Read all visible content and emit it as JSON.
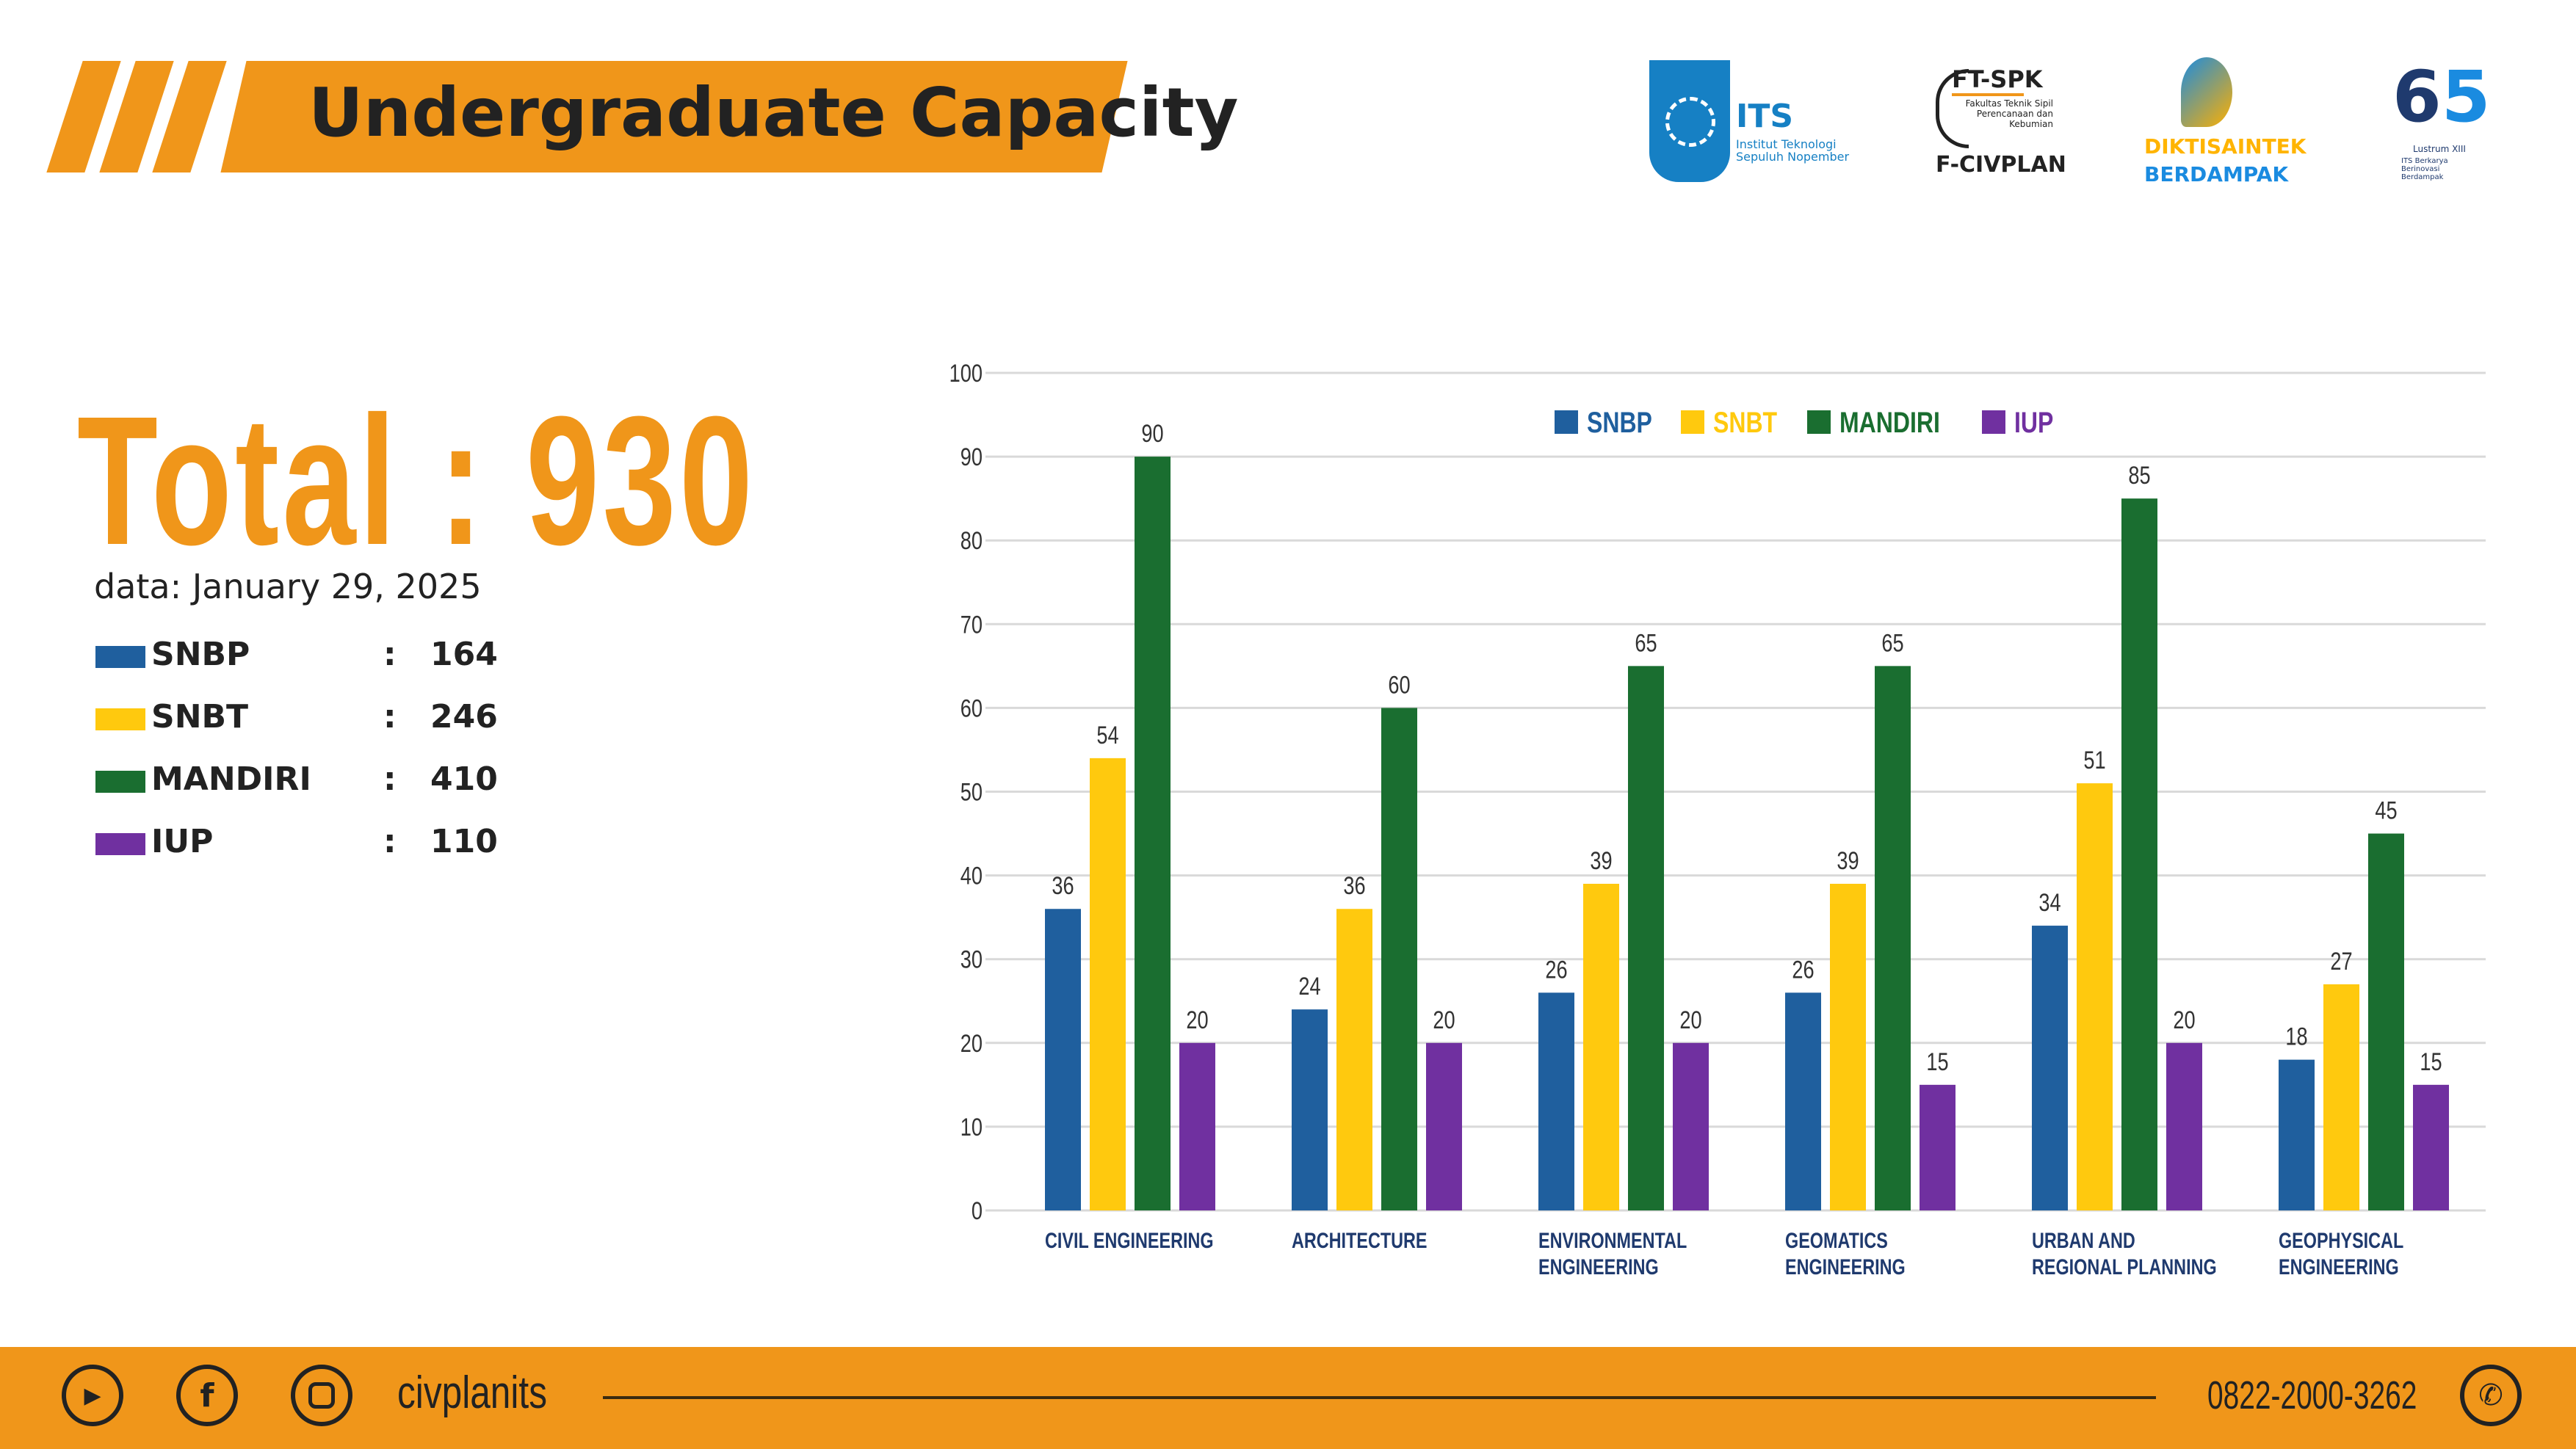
{
  "header": {
    "title": "Undergraduate Capacity",
    "logos": [
      {
        "name": "its-logo",
        "text": "ITS",
        "subtitle": "Institut Teknologi Sepuluh Nopember"
      },
      {
        "name": "ftspk-logo",
        "text": "FT-SPK",
        "subtitle": "Fakultas Teknik Sipil Perencanaan dan Kebumian",
        "caption": "F-CIVPLAN"
      },
      {
        "name": "diktisaintek-logo",
        "line1": "DIKTISAINTEK",
        "line2": "BERDAMPAK"
      },
      {
        "name": "its-65-logo",
        "text": "Lustrum XIII",
        "subtitle": "ITS Berkarya Berinovasi Berdampak"
      }
    ]
  },
  "summary": {
    "total_label": "Total : 930",
    "date_label": "data: January 29, 2025",
    "items": [
      {
        "label": "SNBP",
        "colon": ":",
        "value": "164",
        "color": "#1F5F9E"
      },
      {
        "label": "SNBT",
        "colon": ":",
        "value": "246",
        "color": "#FFC90E"
      },
      {
        "label": "MANDIRI",
        "colon": ":",
        "value": "410",
        "color": "#1A6E30"
      },
      {
        "label": "IUP",
        "colon": ":",
        "value": "110",
        "color": "#7030A0"
      }
    ]
  },
  "chart_data": {
    "type": "bar",
    "categories": [
      [
        "CIVIL ENGINEERING"
      ],
      [
        "ARCHITECTURE"
      ],
      [
        "ENVIRONMENTAL",
        "ENGINEERING"
      ],
      [
        "GEOMATICS",
        "ENGINEERING"
      ],
      [
        "URBAN AND",
        "REGIONAL PLANNING"
      ],
      [
        "GEOPHYSICAL",
        "ENGINEERING"
      ]
    ],
    "series": [
      {
        "name": "SNBP",
        "color": "#1F5F9E",
        "values": [
          36,
          24,
          26,
          26,
          34,
          18
        ]
      },
      {
        "name": "SNBT",
        "color": "#FFC90E",
        "values": [
          54,
          36,
          39,
          39,
          51,
          27
        ]
      },
      {
        "name": "MANDIRI",
        "color": "#1A6E30",
        "values": [
          90,
          60,
          65,
          65,
          85,
          45
        ]
      },
      {
        "name": "IUP",
        "color": "#7030A0",
        "values": [
          20,
          20,
          20,
          15,
          20,
          15
        ]
      }
    ],
    "ylim": [
      0,
      100
    ],
    "yticks": [
      0,
      10,
      20,
      30,
      40,
      50,
      60,
      70,
      80,
      90,
      100
    ],
    "grid": true,
    "legend": "top-center",
    "data_labels": true
  },
  "footer": {
    "icons": [
      "youtube-icon",
      "facebook-icon",
      "instagram-icon",
      "whatsapp-icon"
    ],
    "handle": "civplanits",
    "phone": "0822-2000-3262"
  },
  "colors": {
    "accent": "#F0961A",
    "text": "#222222",
    "category_label": "#1F3A6E"
  }
}
